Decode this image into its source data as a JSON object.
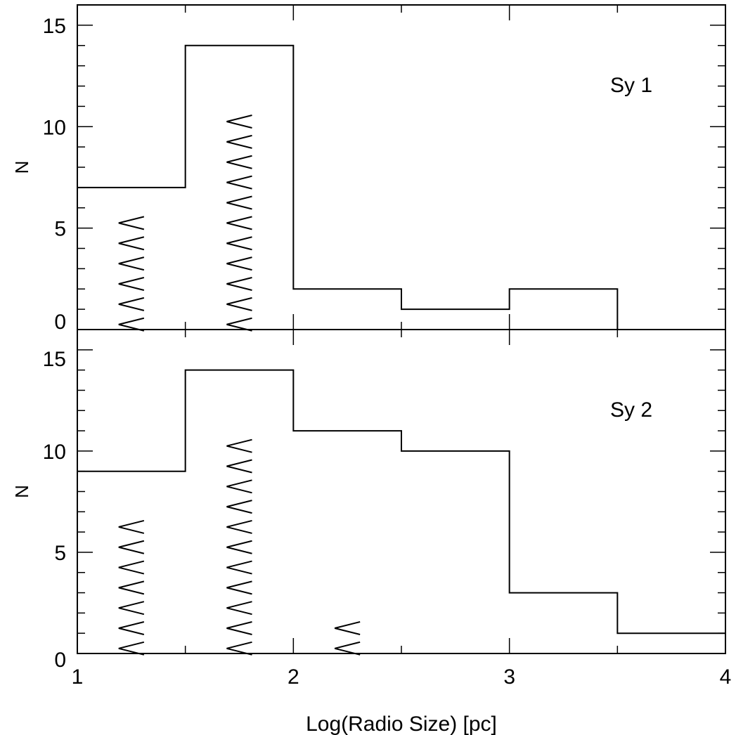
{
  "chart_data": [
    {
      "type": "bar",
      "histogram": true,
      "panel": "top",
      "annotation": "Sy 1",
      "ylabel": "N",
      "xlim": [
        1,
        4
      ],
      "ylim": [
        0,
        16
      ],
      "xticks": [
        "1",
        "2",
        "3",
        "4"
      ],
      "yticks": [
        "0",
        "5",
        "10",
        "15"
      ],
      "bin_edges": [
        1,
        1.5,
        2,
        2.5,
        3,
        3.5,
        4
      ],
      "values": [
        7,
        14,
        2,
        1,
        2,
        0
      ],
      "upper_limits": [
        {
          "x": 1.25,
          "count": 6
        },
        {
          "x": 1.75,
          "count": 11
        }
      ]
    },
    {
      "type": "bar",
      "histogram": true,
      "panel": "bottom",
      "annotation": "Sy 2",
      "ylabel": "N",
      "xlabel": "Log(Radio Size) [pc]",
      "xlim": [
        1,
        4
      ],
      "ylim": [
        0,
        16
      ],
      "xticks": [
        "1",
        "2",
        "3",
        "4"
      ],
      "yticks": [
        "0",
        "5",
        "10",
        "15"
      ],
      "bin_edges": [
        1,
        1.5,
        2,
        2.5,
        3,
        3.5,
        4
      ],
      "values": [
        9,
        14,
        11,
        10,
        3,
        1
      ],
      "upper_limits": [
        {
          "x": 1.25,
          "count": 7
        },
        {
          "x": 1.75,
          "count": 11
        },
        {
          "x": 2.25,
          "count": 2
        }
      ]
    }
  ],
  "colors": {
    "line": "#000000",
    "background": "#ffffff"
  },
  "limit_symbol": "<"
}
